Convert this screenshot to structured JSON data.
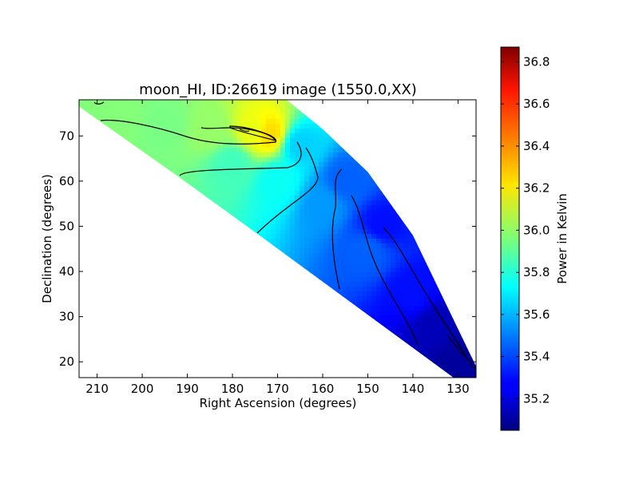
{
  "chart_data": {
    "type": "heatmap",
    "title": "moon_HI, ID:26619 image (1550.0,XX)",
    "xlabel": "Right Ascension (degrees)",
    "ylabel": "Declination (degrees)",
    "xlim": [
      214,
      126
    ],
    "ylim": [
      16.5,
      78
    ],
    "x_ticks": [
      210,
      200,
      190,
      180,
      170,
      160,
      150,
      140,
      130
    ],
    "y_ticks": [
      20,
      30,
      40,
      50,
      60,
      70
    ],
    "colormap": "jet",
    "colorbar": {
      "label": "Power in Kelvin",
      "min": 35.05,
      "max": 36.87,
      "ticks": [
        35.2,
        35.4,
        35.6,
        35.8,
        36.0,
        36.2,
        36.4,
        36.6,
        36.8
      ]
    },
    "coverage_region": [
      [
        214,
        76.5
      ],
      [
        214,
        78
      ],
      [
        168,
        78
      ],
      [
        160,
        71.5
      ],
      [
        150,
        62
      ],
      [
        140,
        48
      ],
      [
        126,
        19
      ],
      [
        126,
        16.5
      ],
      [
        131,
        16.5
      ],
      [
        174,
        48
      ],
      [
        192,
        61
      ],
      [
        214,
        76.5
      ]
    ],
    "field_samples": [
      {
        "ra": 205,
        "dec": 74,
        "power": 35.97
      },
      {
        "ra": 195,
        "dec": 72,
        "power": 35.95
      },
      {
        "ra": 185,
        "dec": 71,
        "power": 36.0
      },
      {
        "ra": 175,
        "dec": 71,
        "power": 36.15
      },
      {
        "ra": 172,
        "dec": 70.5,
        "power": 36.25
      },
      {
        "ra": 180,
        "dec": 64,
        "power": 35.85
      },
      {
        "ra": 170,
        "dec": 60,
        "power": 35.75
      },
      {
        "ra": 165,
        "dec": 68,
        "power": 35.65
      },
      {
        "ra": 160,
        "dec": 55,
        "power": 35.55
      },
      {
        "ra": 150,
        "dec": 45,
        "power": 35.45
      },
      {
        "ra": 155,
        "dec": 60,
        "power": 35.45
      },
      {
        "ra": 147,
        "dec": 50,
        "power": 35.3
      },
      {
        "ra": 140,
        "dec": 35,
        "power": 35.3
      },
      {
        "ra": 135,
        "dec": 28,
        "power": 35.15
      },
      {
        "ra": 130,
        "dec": 20,
        "power": 35.1
      }
    ],
    "contour_levels": [
      35.25,
      35.4,
      35.55,
      35.7,
      35.85,
      36.0,
      36.15
    ]
  }
}
